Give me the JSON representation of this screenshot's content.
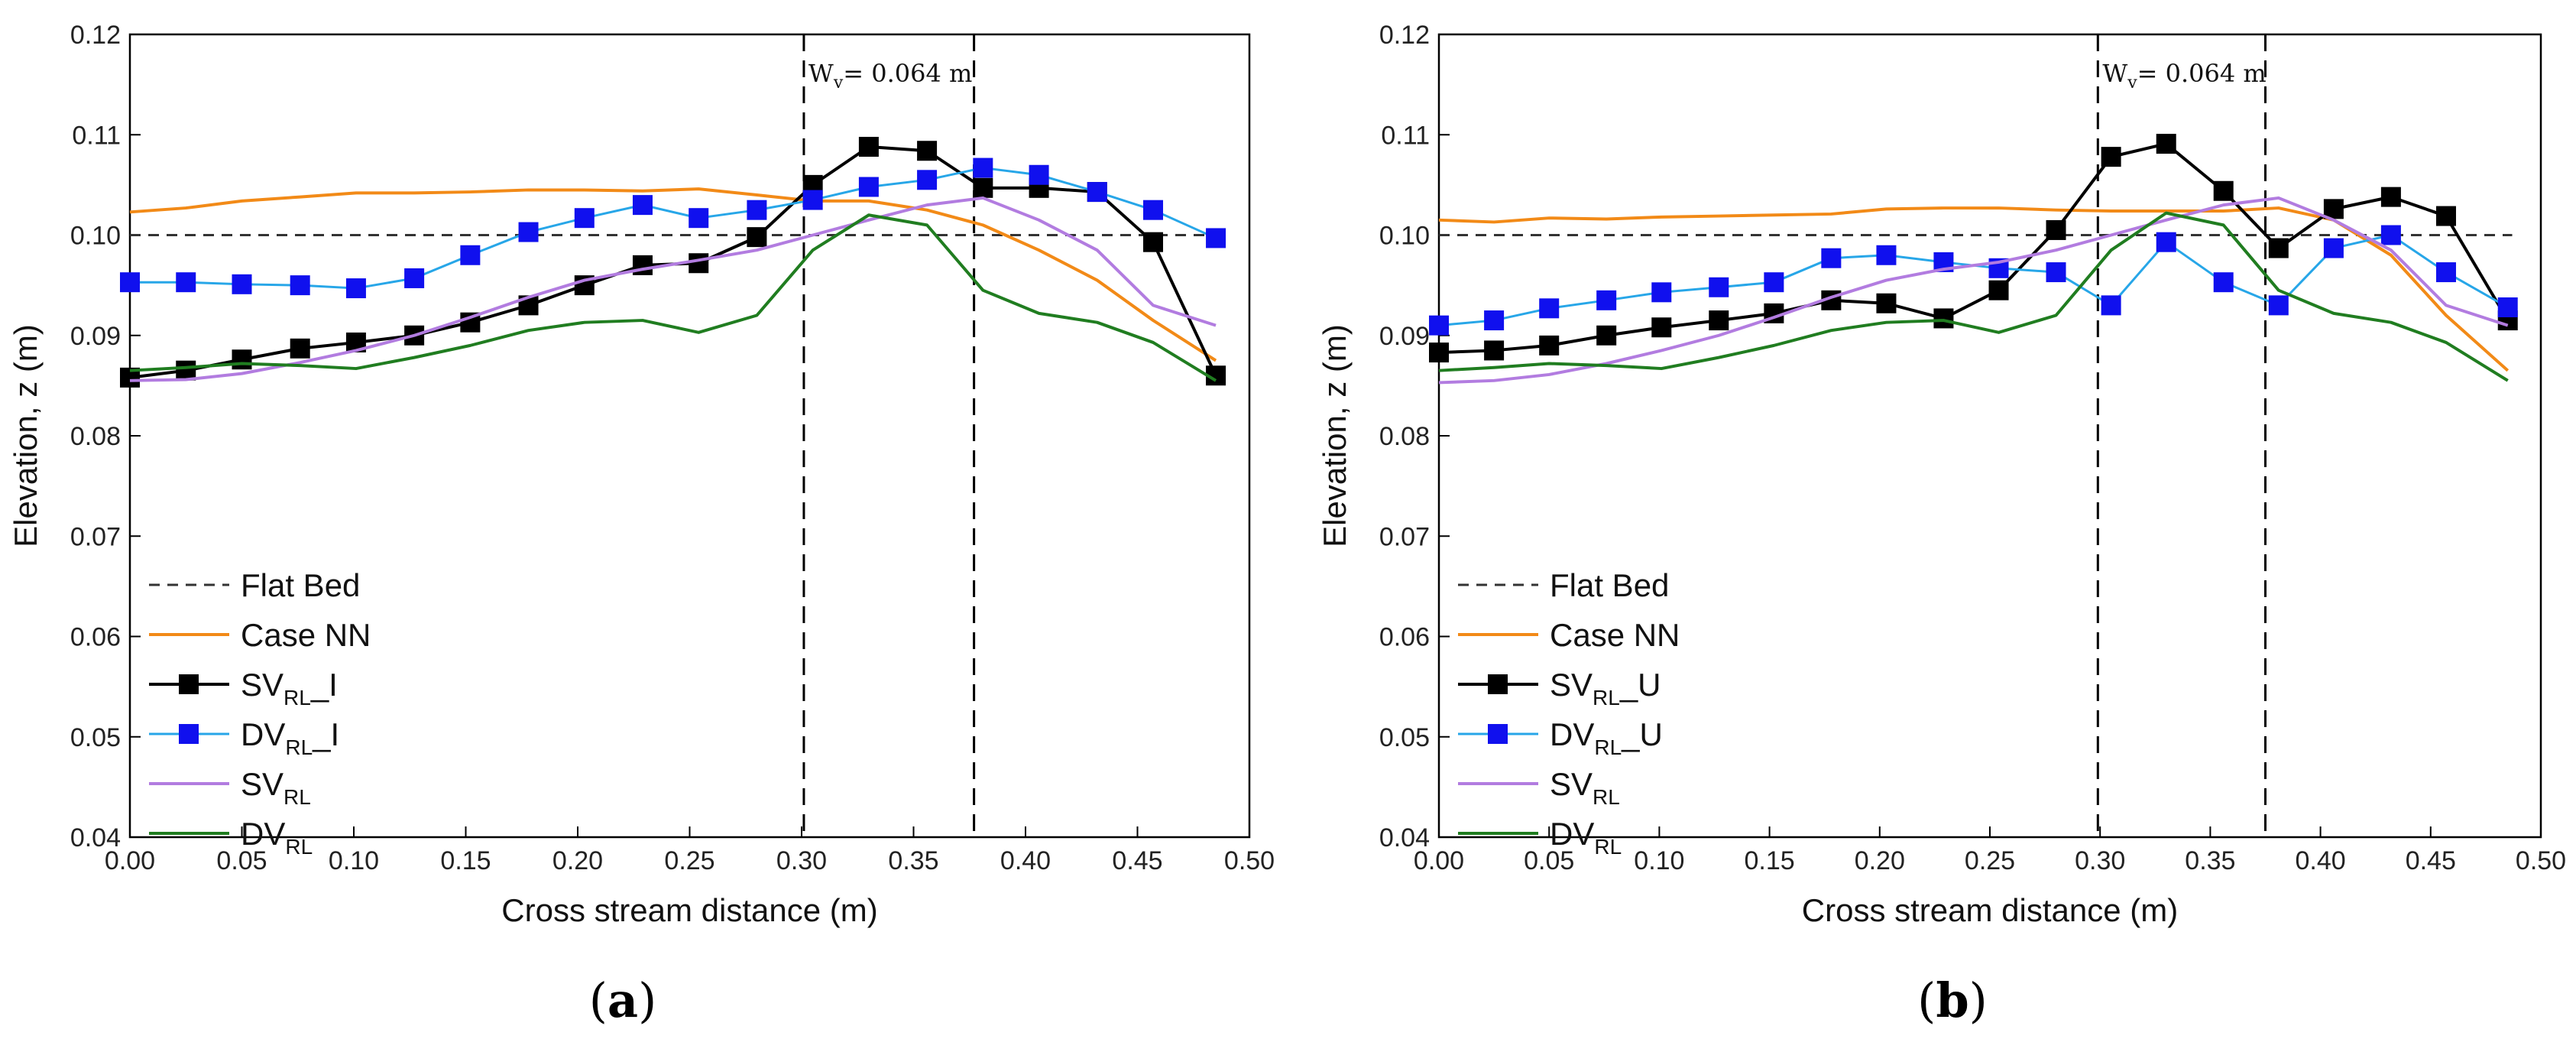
{
  "figure": {
    "panels": [
      {
        "id": "a",
        "label_open": "(",
        "label_letter": "a",
        "label_close": ")"
      },
      {
        "id": "b",
        "label_open": "(",
        "label_letter": "b",
        "label_close": ")"
      }
    ]
  },
  "colors": {
    "flat_bed": "#333333",
    "case_nn": "#f28a17",
    "sv_marker": "#000000",
    "dv_marker": "#1010ee",
    "dv_line": "#27a6e8",
    "sv_rl": "#b27ce0",
    "dv_rl": "#207d20"
  },
  "chart_data": [
    {
      "type": "line",
      "panel": "a",
      "xlabel": "Cross stream distance (m)",
      "ylabel": "Elevation, z (m)",
      "xlim": [
        0.0,
        0.5
      ],
      "ylim": [
        0.04,
        0.12
      ],
      "xticks": [
        "0.00",
        "0.05",
        "0.10",
        "0.15",
        "0.20",
        "0.25",
        "0.30",
        "0.35",
        "0.40",
        "0.45",
        "0.50"
      ],
      "yticks": [
        "0.04",
        "0.05",
        "0.06",
        "0.07",
        "0.08",
        "0.09",
        "0.10",
        "0.11",
        "0.12"
      ],
      "grid": false,
      "legend_position": "lower-left",
      "annotation": {
        "text_main": "W",
        "text_sub": "v",
        "text_rest": "= 0.064 m",
        "x": 0.301
      },
      "vlines": [
        0.301,
        0.377
      ],
      "series": [
        {
          "key": "flat_bed",
          "name": "Flat Bed",
          "name_sub": "",
          "name_suffix": "",
          "style": "dashed",
          "x": [
            0.0,
            0.487
          ],
          "y": [
            0.1,
            0.1
          ]
        },
        {
          "key": "case_nn",
          "name": "Case NN",
          "name_sub": "",
          "name_suffix": "",
          "style": "line",
          "x": [
            0.0,
            0.025,
            0.05,
            0.076,
            0.101,
            0.127,
            0.152,
            0.178,
            0.203,
            0.229,
            0.254,
            0.28,
            0.305,
            0.33,
            0.356,
            0.381,
            0.406,
            0.432,
            0.457,
            0.485
          ],
          "y": [
            0.1023,
            0.1027,
            0.1034,
            0.1038,
            0.1042,
            0.1042,
            0.1043,
            0.1045,
            0.1045,
            0.1044,
            0.1046,
            0.104,
            0.1034,
            0.1034,
            0.1025,
            0.101,
            0.0985,
            0.0955,
            0.0915,
            0.0875
          ]
        },
        {
          "key": "sv_rl_i",
          "name": "SV",
          "name_sub": "RL",
          "name_suffix": "_I",
          "style": "marker-square",
          "x": [
            0.0,
            0.025,
            0.05,
            0.076,
            0.101,
            0.127,
            0.152,
            0.178,
            0.203,
            0.229,
            0.254,
            0.28,
            0.305,
            0.33,
            0.356,
            0.381,
            0.406,
            0.432,
            0.457,
            0.485
          ],
          "y": [
            0.0858,
            0.0865,
            0.0876,
            0.0887,
            0.0893,
            0.09,
            0.0913,
            0.093,
            0.095,
            0.097,
            0.0972,
            0.0998,
            0.105,
            0.1088,
            0.1084,
            0.1047,
            0.1047,
            0.1043,
            0.0993,
            0.086
          ]
        },
        {
          "key": "dv_rl_i",
          "name": "DV",
          "name_sub": "RL",
          "name_suffix": "_I",
          "style": "marker-square-blue",
          "x": [
            0.0,
            0.025,
            0.05,
            0.076,
            0.101,
            0.127,
            0.152,
            0.178,
            0.203,
            0.229,
            0.254,
            0.28,
            0.305,
            0.33,
            0.356,
            0.381,
            0.406,
            0.432,
            0.457,
            0.485
          ],
          "y": [
            0.0953,
            0.0953,
            0.0951,
            0.095,
            0.0947,
            0.0957,
            0.098,
            0.1003,
            0.1017,
            0.103,
            0.1017,
            0.1025,
            0.1035,
            0.1048,
            0.1055,
            0.1067,
            0.106,
            0.1043,
            0.1025,
            0.0997
          ]
        },
        {
          "key": "sv_rl",
          "name": "SV",
          "name_sub": "RL",
          "name_suffix": "",
          "style": "line",
          "x": [
            0.0,
            0.025,
            0.05,
            0.076,
            0.101,
            0.127,
            0.152,
            0.178,
            0.203,
            0.229,
            0.254,
            0.28,
            0.305,
            0.33,
            0.356,
            0.381,
            0.406,
            0.432,
            0.457,
            0.485
          ],
          "y": [
            0.0855,
            0.0856,
            0.0862,
            0.0873,
            0.0885,
            0.09,
            0.0918,
            0.0938,
            0.0955,
            0.0966,
            0.0975,
            0.0985,
            0.1,
            0.1015,
            0.103,
            0.1037,
            0.1015,
            0.0985,
            0.093,
            0.091
          ]
        },
        {
          "key": "dv_rl",
          "name": "DV",
          "name_sub": "RL",
          "name_suffix": "",
          "style": "line",
          "x": [
            0.0,
            0.025,
            0.05,
            0.076,
            0.101,
            0.127,
            0.152,
            0.178,
            0.203,
            0.229,
            0.254,
            0.28,
            0.305,
            0.33,
            0.356,
            0.381,
            0.406,
            0.432,
            0.457,
            0.485
          ],
          "y": [
            0.0865,
            0.0868,
            0.0872,
            0.087,
            0.0867,
            0.0878,
            0.089,
            0.0905,
            0.0913,
            0.0915,
            0.0903,
            0.092,
            0.0985,
            0.102,
            0.101,
            0.0945,
            0.0922,
            0.0913,
            0.0893,
            0.0855
          ]
        }
      ]
    },
    {
      "type": "line",
      "panel": "b",
      "xlabel": "Cross stream distance (m)",
      "ylabel": "Elevation, z (m)",
      "xlim": [
        0.0,
        0.5
      ],
      "ylim": [
        0.04,
        0.12
      ],
      "xticks": [
        "0.00",
        "0.05",
        "0.10",
        "0.15",
        "0.20",
        "0.25",
        "0.30",
        "0.35",
        "0.40",
        "0.45",
        "0.50"
      ],
      "yticks": [
        "0.04",
        "0.05",
        "0.06",
        "0.07",
        "0.08",
        "0.09",
        "0.10",
        "0.11",
        "0.12"
      ],
      "grid": false,
      "legend_position": "lower-left",
      "annotation": {
        "text_main": "W",
        "text_sub": "v",
        "text_rest": "= 0.064 m",
        "x": 0.299
      },
      "vlines": [
        0.299,
        0.375
      ],
      "series": [
        {
          "key": "flat_bed",
          "name": "Flat Bed",
          "name_sub": "",
          "name_suffix": "",
          "style": "dashed",
          "x": [
            0.0,
            0.487
          ],
          "y": [
            0.1,
            0.1
          ]
        },
        {
          "key": "case_nn",
          "name": "Case NN",
          "name_sub": "",
          "name_suffix": "",
          "style": "line",
          "x": [
            0.0,
            0.025,
            0.05,
            0.076,
            0.101,
            0.127,
            0.152,
            0.178,
            0.203,
            0.229,
            0.254,
            0.28,
            0.305,
            0.33,
            0.356,
            0.381,
            0.406,
            0.432,
            0.457,
            0.485
          ],
          "y": [
            0.1015,
            0.1013,
            0.1017,
            0.1016,
            0.1018,
            0.1019,
            0.102,
            0.1021,
            0.1026,
            0.1027,
            0.1027,
            0.1025,
            0.1024,
            0.1024,
            0.1024,
            0.1027,
            0.1015,
            0.098,
            0.092,
            0.0865
          ]
        },
        {
          "key": "sv_rl_u",
          "name": "SV",
          "name_sub": "RL",
          "name_suffix": "_U",
          "style": "marker-square",
          "x": [
            0.0,
            0.025,
            0.05,
            0.076,
            0.101,
            0.127,
            0.152,
            0.178,
            0.203,
            0.229,
            0.254,
            0.28,
            0.305,
            0.33,
            0.356,
            0.381,
            0.406,
            0.432,
            0.457,
            0.485
          ],
          "y": [
            0.0883,
            0.0885,
            0.089,
            0.09,
            0.0908,
            0.0915,
            0.0922,
            0.0935,
            0.0932,
            0.0917,
            0.0945,
            0.1005,
            0.1078,
            0.1091,
            0.1044,
            0.0987,
            0.1026,
            0.1038,
            0.1019,
            0.0915
          ]
        },
        {
          "key": "dv_rl_u",
          "name": "DV",
          "name_sub": "RL",
          "name_suffix": "_U",
          "style": "marker-square-blue",
          "x": [
            0.0,
            0.025,
            0.05,
            0.076,
            0.101,
            0.127,
            0.152,
            0.178,
            0.203,
            0.229,
            0.254,
            0.28,
            0.305,
            0.33,
            0.356,
            0.381,
            0.406,
            0.432,
            0.457,
            0.485
          ],
          "y": [
            0.091,
            0.0915,
            0.0927,
            0.0935,
            0.0943,
            0.0948,
            0.0953,
            0.0977,
            0.098,
            0.0973,
            0.0967,
            0.0963,
            0.093,
            0.0993,
            0.0953,
            0.093,
            0.0987,
            0.1,
            0.0963,
            0.0928
          ]
        },
        {
          "key": "sv_rl",
          "name": "SV",
          "name_sub": "RL",
          "name_suffix": "",
          "style": "line",
          "x": [
            0.0,
            0.025,
            0.05,
            0.076,
            0.101,
            0.127,
            0.152,
            0.178,
            0.203,
            0.229,
            0.254,
            0.28,
            0.305,
            0.33,
            0.356,
            0.381,
            0.406,
            0.432,
            0.457,
            0.485
          ],
          "y": [
            0.0853,
            0.0855,
            0.0861,
            0.0872,
            0.0885,
            0.09,
            0.0918,
            0.0938,
            0.0955,
            0.0966,
            0.0973,
            0.0985,
            0.1,
            0.1015,
            0.103,
            0.1037,
            0.1015,
            0.0985,
            0.093,
            0.091
          ]
        },
        {
          "key": "dv_rl",
          "name": "DV",
          "name_sub": "RL",
          "name_suffix": "",
          "style": "line",
          "x": [
            0.0,
            0.025,
            0.05,
            0.076,
            0.101,
            0.127,
            0.152,
            0.178,
            0.203,
            0.229,
            0.254,
            0.28,
            0.305,
            0.33,
            0.356,
            0.381,
            0.406,
            0.432,
            0.457,
            0.485
          ],
          "y": [
            0.0865,
            0.0868,
            0.0872,
            0.087,
            0.0867,
            0.0878,
            0.089,
            0.0905,
            0.0913,
            0.0915,
            0.0903,
            0.092,
            0.0985,
            0.1022,
            0.101,
            0.0945,
            0.0922,
            0.0913,
            0.0893,
            0.0855
          ]
        }
      ]
    }
  ]
}
